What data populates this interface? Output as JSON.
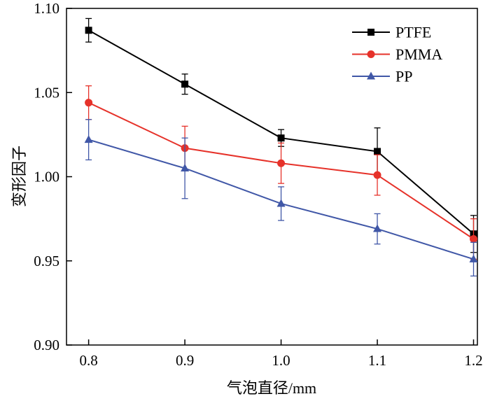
{
  "chart_data": {
    "type": "line",
    "title": "",
    "xlabel": "气泡直径/mm",
    "ylabel": "变形因子",
    "xlim": [
      0.777,
      1.204
    ],
    "ylim": [
      0.9,
      1.1
    ],
    "grid": false,
    "legend_position": "top-right",
    "xticks": [
      {
        "v": 0.8,
        "label": "0.8"
      },
      {
        "v": 0.9,
        "label": "0.9"
      },
      {
        "v": 1.0,
        "label": "1.0"
      },
      {
        "v": 1.1,
        "label": "1.1"
      },
      {
        "v": 1.2,
        "label": "1.2"
      }
    ],
    "yticks": [
      {
        "v": 0.9,
        "label": "0.90"
      },
      {
        "v": 0.95,
        "label": "0.95"
      },
      {
        "v": 1.0,
        "label": "1.00"
      },
      {
        "v": 1.05,
        "label": "1.05"
      },
      {
        "v": 1.1,
        "label": "1.10"
      }
    ],
    "x": [
      0.8,
      0.9,
      1.0,
      1.1,
      1.2
    ],
    "series": [
      {
        "name": "PTFE",
        "color": "#000000",
        "marker": "square",
        "values": [
          1.087,
          1.055,
          1.023,
          1.015,
          0.966
        ],
        "errors": [
          0.007,
          0.006,
          0.005,
          0.014,
          0.011
        ]
      },
      {
        "name": "PMMA",
        "color": "#e6322a",
        "marker": "circle",
        "values": [
          1.044,
          1.017,
          1.008,
          1.001,
          0.963
        ],
        "errors": [
          0.01,
          0.013,
          0.012,
          0.012,
          0.012
        ]
      },
      {
        "name": "PP",
        "color": "#4057a7",
        "marker": "triangle-up",
        "values": [
          1.022,
          1.005,
          0.984,
          0.969,
          0.951
        ],
        "errors": [
          0.012,
          0.018,
          0.01,
          0.009,
          0.01
        ]
      }
    ]
  }
}
